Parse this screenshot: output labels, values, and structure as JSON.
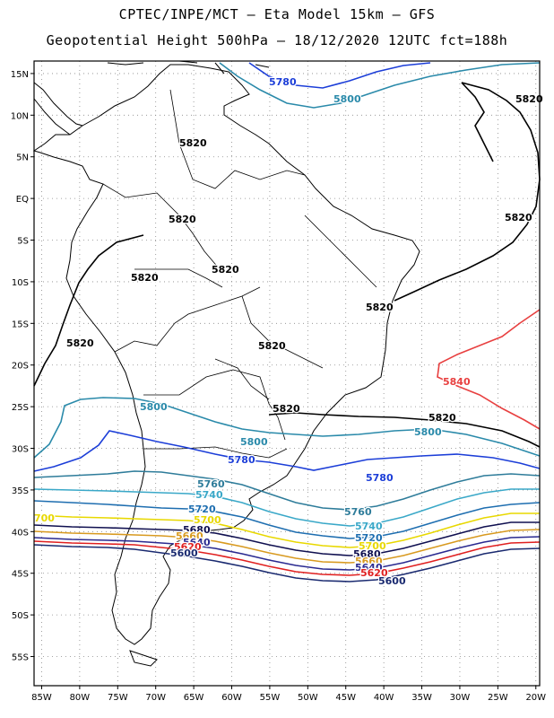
{
  "header": {
    "line1": "CPTEC/INPE/MCT –  Eta Model 15km – GFS",
    "line2": "Geopotential Height 500hPa – 18/12/2020 12UTC fct=188h"
  },
  "map": {
    "lat_labels": [
      "15N",
      "10N",
      "5N",
      "EQ",
      "5S",
      "10S",
      "15S",
      "20S",
      "25S",
      "30S",
      "35S",
      "40S",
      "45S",
      "50S",
      "55S"
    ],
    "lon_labels": [
      "85W",
      "80W",
      "75W",
      "70W",
      "65W",
      "60W",
      "55W",
      "50W",
      "45W",
      "40W",
      "35W",
      "30W",
      "25W",
      "20W"
    ],
    "colors": {
      "c5600": "#1a2a70",
      "c5620": "#e02020",
      "c5640": "#2a2a90",
      "c5660": "#d89a20",
      "c5680": "#101050",
      "c5700": "#e8d800",
      "c5720": "#1e6eb0",
      "c5740": "#3aa8c8",
      "c5760": "#2e7c9a",
      "c5780": "#1c3ed8",
      "c5800": "#2a8aaa",
      "c5820": "#000000",
      "c5840": "#e84040",
      "coast": "#000000",
      "grid": "#888888"
    },
    "contour_labels": [
      {
        "id": "l1",
        "text": "5780",
        "color": "c5780"
      },
      {
        "id": "l2",
        "text": "5800",
        "color": "c5800"
      },
      {
        "id": "l3",
        "text": "5820",
        "color": "c5820"
      },
      {
        "id": "l4",
        "text": "5820",
        "color": "c5820"
      },
      {
        "id": "l5",
        "text": "5820",
        "color": "c5820"
      },
      {
        "id": "l6",
        "text": "5820",
        "color": "c5820"
      },
      {
        "id": "l7",
        "text": "5820",
        "color": "c5820"
      },
      {
        "id": "l8",
        "text": "5820",
        "color": "c5820"
      },
      {
        "id": "l9",
        "text": "5820",
        "color": "c5820"
      },
      {
        "id": "l10",
        "text": "5820",
        "color": "c5820"
      },
      {
        "id": "l11",
        "text": "5820",
        "color": "c5820"
      },
      {
        "id": "l12",
        "text": "5820",
        "color": "c5820"
      },
      {
        "id": "l13",
        "text": "5840",
        "color": "c5840"
      },
      {
        "id": "l14",
        "text": "5800",
        "color": "c5800"
      },
      {
        "id": "l15",
        "text": "5820",
        "color": "c5820"
      },
      {
        "id": "l16",
        "text": "5800",
        "color": "c5800"
      },
      {
        "id": "l17",
        "text": "5800",
        "color": "c5800"
      },
      {
        "id": "l18",
        "text": "5780",
        "color": "c5780"
      },
      {
        "id": "l19",
        "text": "5780",
        "color": "c5780"
      },
      {
        "id": "l20",
        "text": "5760",
        "color": "c5760"
      },
      {
        "id": "l21",
        "text": "5740",
        "color": "c5740"
      },
      {
        "id": "l22",
        "text": "5720",
        "color": "c5720"
      },
      {
        "id": "l23",
        "text": "5700",
        "color": "c5700"
      },
      {
        "id": "l24",
        "text": "5680",
        "color": "c5680"
      },
      {
        "id": "l25",
        "text": "5660",
        "color": "c5660"
      },
      {
        "id": "l26",
        "text": "5640",
        "color": "c5640"
      },
      {
        "id": "l27",
        "text": "5620",
        "color": "c5620"
      },
      {
        "id": "l28",
        "text": "5600",
        "color": "c5600"
      },
      {
        "id": "l29",
        "text": "5760",
        "color": "c5760"
      },
      {
        "id": "l30",
        "text": "5740",
        "color": "c5740"
      },
      {
        "id": "l31",
        "text": "5720",
        "color": "c5720"
      },
      {
        "id": "l32",
        "text": "5700",
        "color": "c5700"
      },
      {
        "id": "l33",
        "text": "5680",
        "color": "c5680"
      },
      {
        "id": "l34",
        "text": "5660",
        "color": "c5660"
      },
      {
        "id": "l35",
        "text": "5640",
        "color": "c5640"
      },
      {
        "id": "l36",
        "text": "5620",
        "color": "c5620"
      },
      {
        "id": "l37",
        "text": "5600",
        "color": "c5600"
      },
      {
        "id": "l38",
        "text": "700",
        "color": "c5700"
      }
    ]
  }
}
